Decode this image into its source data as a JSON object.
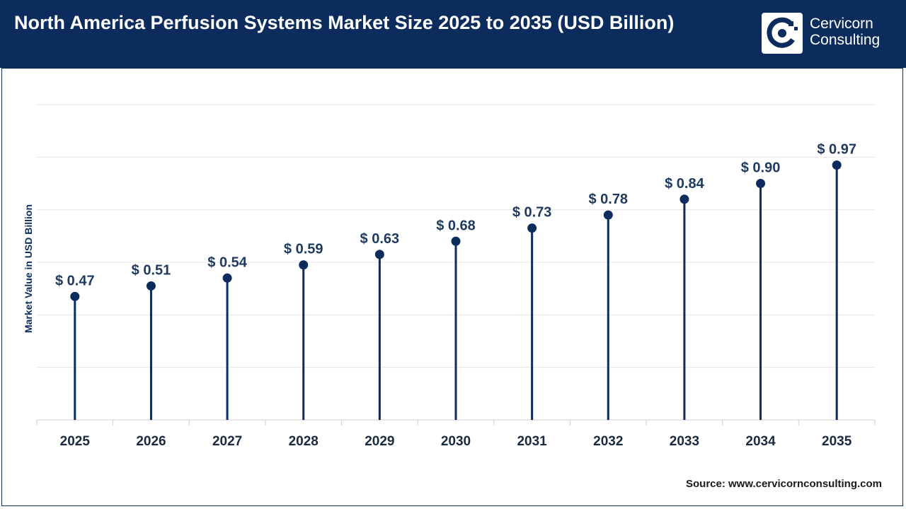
{
  "header": {
    "title": "North America Perfusion Systems Market Size 2025 to 2035 (USD Billion)",
    "logo_line1": "Cervicorn",
    "logo_line2": "Consulting",
    "logo_icon": "cervicorn-logo-icon"
  },
  "colors": {
    "header_bg": "#0b2c5c",
    "marker": "#0b2c5c",
    "stem": "#0b2c5c",
    "label": "#1f3a5f"
  },
  "chart_data": {
    "type": "lollipop",
    "categories": [
      "2025",
      "2026",
      "2027",
      "2028",
      "2029",
      "2030",
      "2031",
      "2032",
      "2033",
      "2034",
      "2035"
    ],
    "values": [
      0.47,
      0.51,
      0.54,
      0.59,
      0.63,
      0.68,
      0.73,
      0.78,
      0.84,
      0.9,
      0.97
    ],
    "data_labels": [
      "$ 0.47",
      "$ 0.51",
      "$ 0.54",
      "$ 0.59",
      "$ 0.63",
      "$ 0.68",
      "$ 0.73",
      "$ 0.78",
      "$ 0.84",
      "$ 0.90",
      "$ 0.97"
    ],
    "ylabel": "Market Value in USD Billion",
    "xlabel": "",
    "ylim": [
      0,
      1.2
    ],
    "grid": true,
    "legend": "none"
  },
  "source": "Source: www.cervicornconsulting.com"
}
